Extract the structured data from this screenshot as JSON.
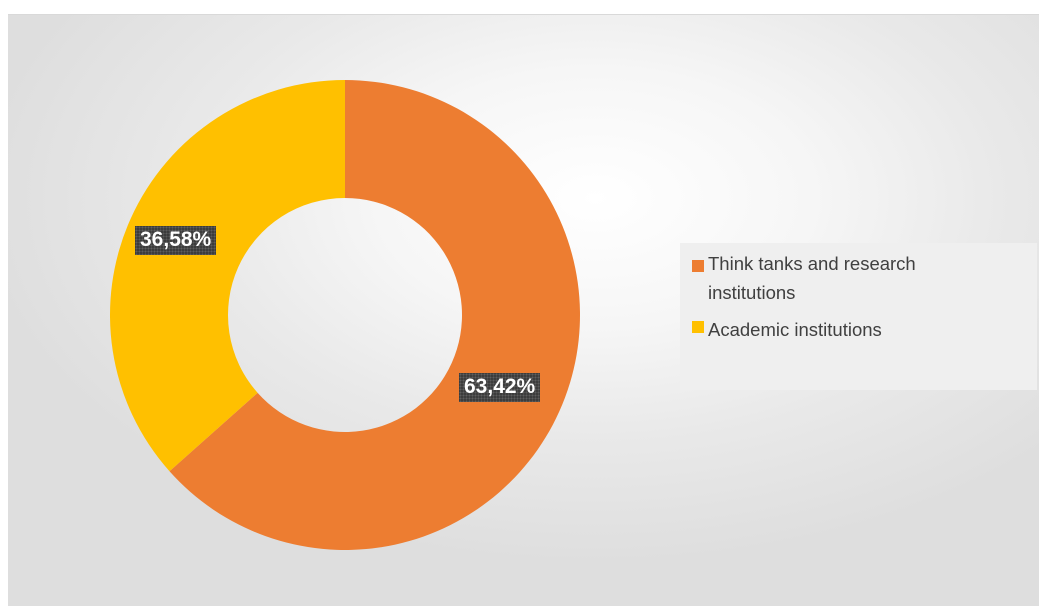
{
  "chart_data": {
    "type": "pie",
    "variant": "donut",
    "categories": [
      "Think tanks and research institutions",
      "Academic institutions"
    ],
    "values": [
      63.42,
      36.58
    ],
    "value_labels": [
      "63,42%",
      "36,58%"
    ],
    "colors": [
      "#ED7D31",
      "#FFC000"
    ],
    "legend_position": "right",
    "title": ""
  }
}
